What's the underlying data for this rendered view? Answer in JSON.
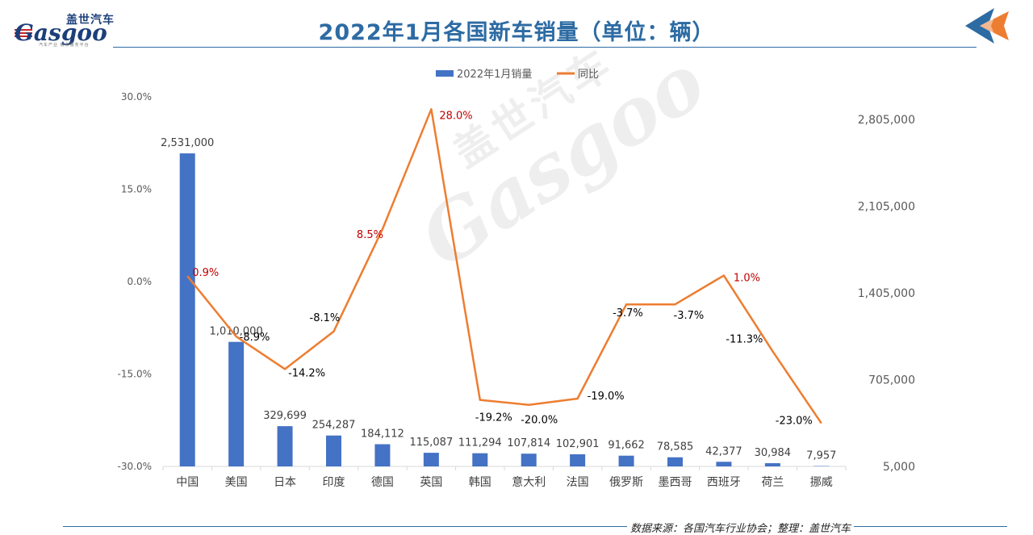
{
  "header": {
    "logo_cn": "盖世汽车",
    "logo_en": "Gasgoo",
    "logo_tagline": "汽车产业 链条服务平台",
    "title": "2022年1月各国新车销量（单位：辆）"
  },
  "footer": {
    "source": "数据来源：各国汽车行业协会；整理：盖世汽车"
  },
  "watermark": {
    "cn": "盖世汽车",
    "en": "Gasgoo"
  },
  "colors": {
    "bar": "#4472c4",
    "line": "#ed7d31",
    "title": "#2d6ba3",
    "label_positive": "#c00000",
    "label_negative": "#000000",
    "axis_text": "#595959"
  },
  "chart_data": {
    "type": "bar+line",
    "title": "",
    "categories": [
      "中国",
      "美国",
      "日本",
      "印度",
      "德国",
      "英国",
      "韩国",
      "意大利",
      "法国",
      "俄罗斯",
      "墨西哥",
      "西班牙",
      "荷兰",
      "挪威"
    ],
    "series": [
      {
        "name": "2022年1月销量",
        "type": "bar",
        "axis": "right",
        "values": [
          2531000,
          1010000,
          329699,
          254287,
          184112,
          115087,
          111294,
          107814,
          102901,
          91662,
          78585,
          42377,
          30984,
          7957
        ],
        "labels": [
          "2,531,000",
          "1,010,000",
          "329,699",
          "254,287",
          "184,112",
          "115,087",
          "111,294",
          "107,814",
          "102,901",
          "91,662",
          "78,585",
          "42,377",
          "30,984",
          "7,957"
        ]
      },
      {
        "name": "同比",
        "type": "line",
        "axis": "left",
        "values": [
          0.9,
          -8.9,
          -14.2,
          -8.1,
          8.5,
          28.0,
          -19.2,
          -20.0,
          -19.0,
          -3.7,
          -3.7,
          1.0,
          -11.3,
          -23.0
        ],
        "labels": [
          "0.9%",
          "-8.9%",
          "-14.2%",
          "-8.1%",
          "8.5%",
          "28.0%",
          "-19.2%",
          "-20.0%",
          "-19.0%",
          "-3.7%",
          "-3.7%",
          "1.0%",
          "-11.3%",
          "-23.0%"
        ]
      }
    ],
    "y_left": {
      "range": [
        -30,
        30
      ],
      "ticks": [
        "30.0%",
        "15.0%",
        "0.0%",
        "-15.0%",
        "-30.0%"
      ],
      "tick_values": [
        30,
        15,
        0,
        -15,
        -30
      ]
    },
    "y_right": {
      "range": [
        5000,
        2805000
      ],
      "ticks": [
        "2,805,000",
        "2,105,000",
        "1,405,000",
        "705,000",
        "5,000"
      ],
      "tick_values": [
        2805000,
        2105000,
        1405000,
        705000,
        5000
      ]
    },
    "legend_position": "top-center",
    "grid": false
  }
}
